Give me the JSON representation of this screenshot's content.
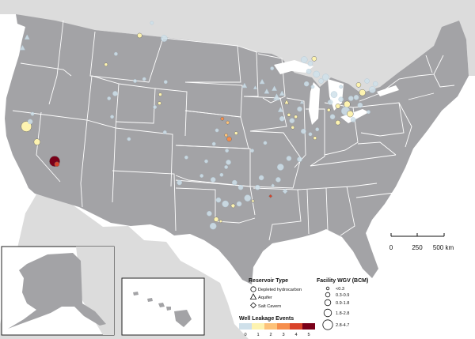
{
  "scale_bar": {
    "labels": [
      "0",
      "250",
      "500 km"
    ]
  },
  "legend_reservoir": {
    "title": "Reservoir Type",
    "items": [
      {
        "label": "Depleted hydrocarbon",
        "icon": "circle-icon"
      },
      {
        "label": "Aquifer",
        "icon": "triangle-icon"
      },
      {
        "label": "Salt Cavern",
        "icon": "diamond-icon"
      }
    ]
  },
  "legend_wgv": {
    "title": "Facility WGV (BCM)",
    "items": [
      "<0.3",
      "0.3-0.9",
      "0.9-1.8",
      "1.8-2.8",
      "2.8-4.7"
    ]
  },
  "legend_leakage": {
    "title": "Well Leakage Events",
    "values": [
      "0",
      "1",
      "2",
      "3",
      "4",
      "5"
    ],
    "colors": [
      "#cfe0ea",
      "#fdf3b0",
      "#fdc279",
      "#f68e4c",
      "#d9432a",
      "#7a0019"
    ]
  },
  "colors": {
    "us_land": "#a3a3a6",
    "foreign_land": "#dcdcdc",
    "state_borders": "#ffffff"
  },
  "facilities": [
    {
      "x": -122.3,
      "y": 37.9,
      "size": 5,
      "type": "hydrocarbon",
      "leak": 1
    },
    {
      "x": -121.8,
      "y": 38.4,
      "size": 2,
      "type": "hydrocarbon",
      "leak": 0
    },
    {
      "x": -121.5,
      "y": 39.2,
      "size": 1,
      "type": "hydrocarbon",
      "leak": 0
    },
    {
      "x": -120.9,
      "y": 36.3,
      "size": 3,
      "type": "hydrocarbon",
      "leak": 1
    },
    {
      "x": -118.6,
      "y": 34.3,
      "size": 5,
      "type": "hydrocarbon",
      "leak": 5
    },
    {
      "x": -118.3,
      "y": 34.0,
      "size": 2,
      "type": "hydrocarbon",
      "leak": 4
    },
    {
      "x": -122.8,
      "y": 46.0,
      "size": 2,
      "type": "aquifer",
      "leak": 0
    },
    {
      "x": -122.2,
      "y": 47.1,
      "size": 2,
      "type": "aquifer",
      "leak": 0
    },
    {
      "x": -111.9,
      "y": 44.3,
      "size": 1,
      "type": "hydrocarbon",
      "leak": 1
    },
    {
      "x": -110.6,
      "y": 45.4,
      "size": 1,
      "type": "hydrocarbon",
      "leak": 0
    },
    {
      "x": -107.5,
      "y": 47.3,
      "size": 2,
      "type": "hydrocarbon",
      "leak": 1
    },
    {
      "x": -105.9,
      "y": 48.6,
      "size": 1,
      "type": "hydrocarbon",
      "leak": 0
    },
    {
      "x": -104.3,
      "y": 47.0,
      "size": 3,
      "type": "hydrocarbon",
      "leak": 0
    },
    {
      "x": -111.5,
      "y": 40.8,
      "size": 1,
      "type": "hydrocarbon",
      "leak": 0
    },
    {
      "x": -110.7,
      "y": 41.3,
      "size": 2,
      "type": "hydrocarbon",
      "leak": 0
    },
    {
      "x": -108.1,
      "y": 42.6,
      "size": 1,
      "type": "hydrocarbon",
      "leak": 0
    },
    {
      "x": -106.9,
      "y": 42.8,
      "size": 1,
      "type": "hydrocarbon",
      "leak": 0
    },
    {
      "x": -104.8,
      "y": 41.2,
      "size": 1,
      "type": "hydrocarbon",
      "leak": 1
    },
    {
      "x": -104.1,
      "y": 42.5,
      "size": 1,
      "type": "hydrocarbon",
      "leak": 0
    },
    {
      "x": -104.9,
      "y": 40.3,
      "size": 1,
      "type": "hydrocarbon",
      "leak": 1
    },
    {
      "x": -105.5,
      "y": 39.9,
      "size": 1,
      "type": "hydrocarbon",
      "leak": 0
    },
    {
      "x": -104.2,
      "y": 37.3,
      "size": 1,
      "type": "hydrocarbon",
      "leak": 0
    },
    {
      "x": -111.1,
      "y": 38.9,
      "size": 1,
      "type": "hydrocarbon",
      "leak": 0
    },
    {
      "x": -108.9,
      "y": 36.6,
      "size": 1,
      "type": "hydrocarbon",
      "leak": 0
    },
    {
      "x": -96.7,
      "y": 38.7,
      "size": 1,
      "type": "hydrocarbon",
      "leak": 3
    },
    {
      "x": -96.0,
      "y": 38.3,
      "size": 1,
      "type": "hydrocarbon",
      "leak": 2
    },
    {
      "x": -97.4,
      "y": 37.5,
      "size": 1,
      "type": "hydrocarbon",
      "leak": 0
    },
    {
      "x": -96.2,
      "y": 37.0,
      "size": 1,
      "type": "hydrocarbon",
      "leak": 2
    },
    {
      "x": -95.8,
      "y": 36.6,
      "size": 2,
      "type": "hydrocarbon",
      "leak": 3
    },
    {
      "x": -94.9,
      "y": 37.2,
      "size": 1,
      "type": "hydrocarbon",
      "leak": 1
    },
    {
      "x": -97.8,
      "y": 36.1,
      "size": 1,
      "type": "hydrocarbon",
      "leak": 0
    },
    {
      "x": -96.1,
      "y": 35.4,
      "size": 1,
      "type": "hydrocarbon",
      "leak": 0
    },
    {
      "x": -95.9,
      "y": 34.2,
      "size": 2,
      "type": "hydrocarbon",
      "leak": 0
    },
    {
      "x": -98.8,
      "y": 34.3,
      "size": 1,
      "type": "hydrocarbon",
      "leak": 0
    },
    {
      "x": -101.4,
      "y": 34.7,
      "size": 1,
      "type": "hydrocarbon",
      "leak": 0
    },
    {
      "x": -102.3,
      "y": 32.1,
      "size": 2,
      "type": "hydrocarbon",
      "leak": 0
    },
    {
      "x": -99.4,
      "y": 32.8,
      "size": 1,
      "type": "hydrocarbon",
      "leak": 0
    },
    {
      "x": -97.9,
      "y": 32.4,
      "size": 2,
      "type": "hydrocarbon",
      "leak": 0
    },
    {
      "x": -96.8,
      "y": 32.9,
      "size": 1,
      "type": "hydrocarbon",
      "leak": 0
    },
    {
      "x": -96.2,
      "y": 33.7,
      "size": 1,
      "type": "hydrocarbon",
      "leak": 0
    },
    {
      "x": -95.1,
      "y": 32.1,
      "size": 2,
      "type": "hydrocarbon",
      "leak": 0
    },
    {
      "x": -94.3,
      "y": 31.6,
      "size": 2,
      "type": "hydrocarbon",
      "leak": 0
    },
    {
      "x": -97.2,
      "y": 30.3,
      "size": 2,
      "type": "hydrocarbon",
      "leak": 0
    },
    {
      "x": -96.3,
      "y": 29.9,
      "size": 3,
      "type": "hydrocarbon",
      "leak": 0
    },
    {
      "x": -95.3,
      "y": 29.7,
      "size": 2,
      "type": "salt",
      "leak": 1
    },
    {
      "x": -94.5,
      "y": 29.9,
      "size": 2,
      "type": "hydrocarbon",
      "leak": 0
    },
    {
      "x": -98.4,
      "y": 28.9,
      "size": 2,
      "type": "hydrocarbon",
      "leak": 0
    },
    {
      "x": -97.5,
      "y": 28.3,
      "size": 2,
      "type": "hydrocarbon",
      "leak": 1
    },
    {
      "x": -97.9,
      "y": 27.6,
      "size": 3,
      "type": "hydrocarbon",
      "leak": 0
    },
    {
      "x": -96.9,
      "y": 28.1,
      "size": 1,
      "type": "salt",
      "leak": 1
    },
    {
      "x": -93.4,
      "y": 30.5,
      "size": 3,
      "type": "hydrocarbon",
      "leak": 0
    },
    {
      "x": -92.7,
      "y": 30.2,
      "size": 1,
      "type": "salt",
      "leak": 1
    },
    {
      "x": -92.1,
      "y": 31.6,
      "size": 2,
      "type": "hydrocarbon",
      "leak": 0
    },
    {
      "x": -91.6,
      "y": 32.6,
      "size": 2,
      "type": "hydrocarbon",
      "leak": 0
    },
    {
      "x": -90.4,
      "y": 30.7,
      "size": 1,
      "type": "salt",
      "leak": 4
    },
    {
      "x": -90.1,
      "y": 31.8,
      "size": 1,
      "type": "salt",
      "leak": 0
    },
    {
      "x": -89.4,
      "y": 32.4,
      "size": 2,
      "type": "hydrocarbon",
      "leak": 0
    },
    {
      "x": -89.1,
      "y": 33.7,
      "size": 3,
      "type": "hydrocarbon",
      "leak": 0
    },
    {
      "x": -88.5,
      "y": 31.2,
      "size": 2,
      "type": "salt",
      "leak": 0
    },
    {
      "x": -88.0,
      "y": 34.6,
      "size": 2,
      "type": "hydrocarbon",
      "leak": 0
    },
    {
      "x": -86.6,
      "y": 34.5,
      "size": 2,
      "type": "hydrocarbon",
      "leak": 0
    },
    {
      "x": -92.8,
      "y": 35.4,
      "size": 1,
      "type": "hydrocarbon",
      "leak": 0
    },
    {
      "x": -91.1,
      "y": 36.2,
      "size": 1,
      "type": "hydrocarbon",
      "leak": 0
    },
    {
      "x": -90.2,
      "y": 43.9,
      "size": 1,
      "type": "hydrocarbon",
      "leak": 0
    },
    {
      "x": -93.8,
      "y": 42.1,
      "size": 2,
      "type": "aquifer",
      "leak": 0
    },
    {
      "x": -92.4,
      "y": 41.9,
      "size": 1,
      "type": "aquifer",
      "leak": 0
    },
    {
      "x": -91.5,
      "y": 42.5,
      "size": 2,
      "type": "aquifer",
      "leak": 0
    },
    {
      "x": -90.9,
      "y": 41.5,
      "size": 2,
      "type": "aquifer",
      "leak": 0
    },
    {
      "x": -89.9,
      "y": 41.8,
      "size": 2,
      "type": "aquifer",
      "leak": 0
    },
    {
      "x": -89.6,
      "y": 40.9,
      "size": 3,
      "type": "aquifer",
      "leak": 0
    },
    {
      "x": -88.9,
      "y": 41.3,
      "size": 2,
      "type": "aquifer",
      "leak": 0
    },
    {
      "x": -88.3,
      "y": 40.4,
      "size": 2,
      "type": "aquifer",
      "leak": 1
    },
    {
      "x": -89.1,
      "y": 39.6,
      "size": 2,
      "type": "aquifer",
      "leak": 0
    },
    {
      "x": -88.9,
      "y": 38.7,
      "size": 2,
      "type": "hydrocarbon",
      "leak": 0
    },
    {
      "x": -88.0,
      "y": 39.1,
      "size": 1,
      "type": "hydrocarbon",
      "leak": 1
    },
    {
      "x": -87.6,
      "y": 38.5,
      "size": 2,
      "type": "hydrocarbon",
      "leak": 0
    },
    {
      "x": -87.1,
      "y": 38.9,
      "size": 1,
      "type": "hydrocarbon",
      "leak": 1
    },
    {
      "x": -86.6,
      "y": 39.7,
      "size": 2,
      "type": "hydrocarbon",
      "leak": 0
    },
    {
      "x": -86.3,
      "y": 40.4,
      "size": 1,
      "type": "aquifer",
      "leak": 0
    },
    {
      "x": -87.5,
      "y": 37.8,
      "size": 1,
      "type": "hydrocarbon",
      "leak": 1
    },
    {
      "x": -86.1,
      "y": 37.4,
      "size": 2,
      "type": "hydrocarbon",
      "leak": 0
    },
    {
      "x": -85.2,
      "y": 37.1,
      "size": 1,
      "type": "hydrocarbon",
      "leak": 0
    },
    {
      "x": -84.3,
      "y": 37.6,
      "size": 1,
      "type": "hydrocarbon",
      "leak": 0
    },
    {
      "x": -84.6,
      "y": 36.7,
      "size": 1,
      "type": "hydrocarbon",
      "leak": 1
    },
    {
      "x": -86.0,
      "y": 44.8,
      "size": 3,
      "type": "hydrocarbon",
      "leak": 0
    },
    {
      "x": -85.2,
      "y": 44.4,
      "size": 2,
      "type": "hydrocarbon",
      "leak": 0
    },
    {
      "x": -84.7,
      "y": 44.9,
      "size": 2,
      "type": "hydrocarbon",
      "leak": 1
    },
    {
      "x": -85.4,
      "y": 43.6,
      "size": 2,
      "type": "hydrocarbon",
      "leak": 0
    },
    {
      "x": -84.4,
      "y": 43.3,
      "size": 3,
      "type": "hydrocarbon",
      "leak": 0
    },
    {
      "x": -83.8,
      "y": 42.6,
      "size": 2,
      "type": "hydrocarbon",
      "leak": 0
    },
    {
      "x": -83.2,
      "y": 43.0,
      "size": 3,
      "type": "hydrocarbon",
      "leak": 0
    },
    {
      "x": -85.7,
      "y": 42.3,
      "size": 2,
      "type": "hydrocarbon",
      "leak": 0
    },
    {
      "x": -84.9,
      "y": 42.0,
      "size": 1,
      "type": "hydrocarbon",
      "leak": 0
    },
    {
      "x": -82.6,
      "y": 40.4,
      "size": 2,
      "type": "hydrocarbon",
      "leak": 0
    },
    {
      "x": -82.1,
      "y": 41.2,
      "size": 3,
      "type": "hydrocarbon",
      "leak": 0
    },
    {
      "x": -81.6,
      "y": 40.0,
      "size": 2,
      "type": "hydrocarbon",
      "leak": 1
    },
    {
      "x": -81.2,
      "y": 40.7,
      "size": 2,
      "type": "hydrocarbon",
      "leak": 0
    },
    {
      "x": -80.4,
      "y": 40.2,
      "size": 3,
      "type": "hydrocarbon",
      "leak": 1
    },
    {
      "x": -80.6,
      "y": 39.5,
      "size": 4,
      "type": "hydrocarbon",
      "leak": 0
    },
    {
      "x": -80.0,
      "y": 39.2,
      "size": 3,
      "type": "hydrocarbon",
      "leak": 1
    },
    {
      "x": -79.2,
      "y": 40.9,
      "size": 2,
      "type": "hydrocarbon",
      "leak": 0
    },
    {
      "x": -78.4,
      "y": 41.4,
      "size": 3,
      "type": "hydrocarbon",
      "leak": 1
    },
    {
      "x": -78.9,
      "y": 42.2,
      "size": 2,
      "type": "hydrocarbon",
      "leak": 1
    },
    {
      "x": -77.8,
      "y": 42.6,
      "size": 2,
      "type": "hydrocarbon",
      "leak": 0
    },
    {
      "x": -77.1,
      "y": 41.7,
      "size": 3,
      "type": "hydrocarbon",
      "leak": 0
    },
    {
      "x": -76.7,
      "y": 42.3,
      "size": 2,
      "type": "hydrocarbon",
      "leak": 0
    },
    {
      "x": -79.6,
      "y": 38.6,
      "size": 2,
      "type": "hydrocarbon",
      "leak": 0
    },
    {
      "x": -81.6,
      "y": 38.3,
      "size": 2,
      "type": "hydrocarbon",
      "leak": 1
    },
    {
      "x": -82.3,
      "y": 38.9,
      "size": 2,
      "type": "hydrocarbon",
      "leak": 0
    },
    {
      "x": -82.8,
      "y": 39.6,
      "size": 1,
      "type": "hydrocarbon",
      "leak": 1
    },
    {
      "x": -79.9,
      "y": 40.8,
      "size": 2,
      "type": "hydrocarbon",
      "leak": 0
    },
    {
      "x": -78.7,
      "y": 40.1,
      "size": 2,
      "type": "hydrocarbon",
      "leak": 0
    },
    {
      "x": -77.6,
      "y": 39.4,
      "size": 1,
      "type": "hydrocarbon",
      "leak": 0
    },
    {
      "x": -81.2,
      "y": 42.0,
      "size": 1,
      "type": "hydrocarbon",
      "leak": 0
    }
  ]
}
